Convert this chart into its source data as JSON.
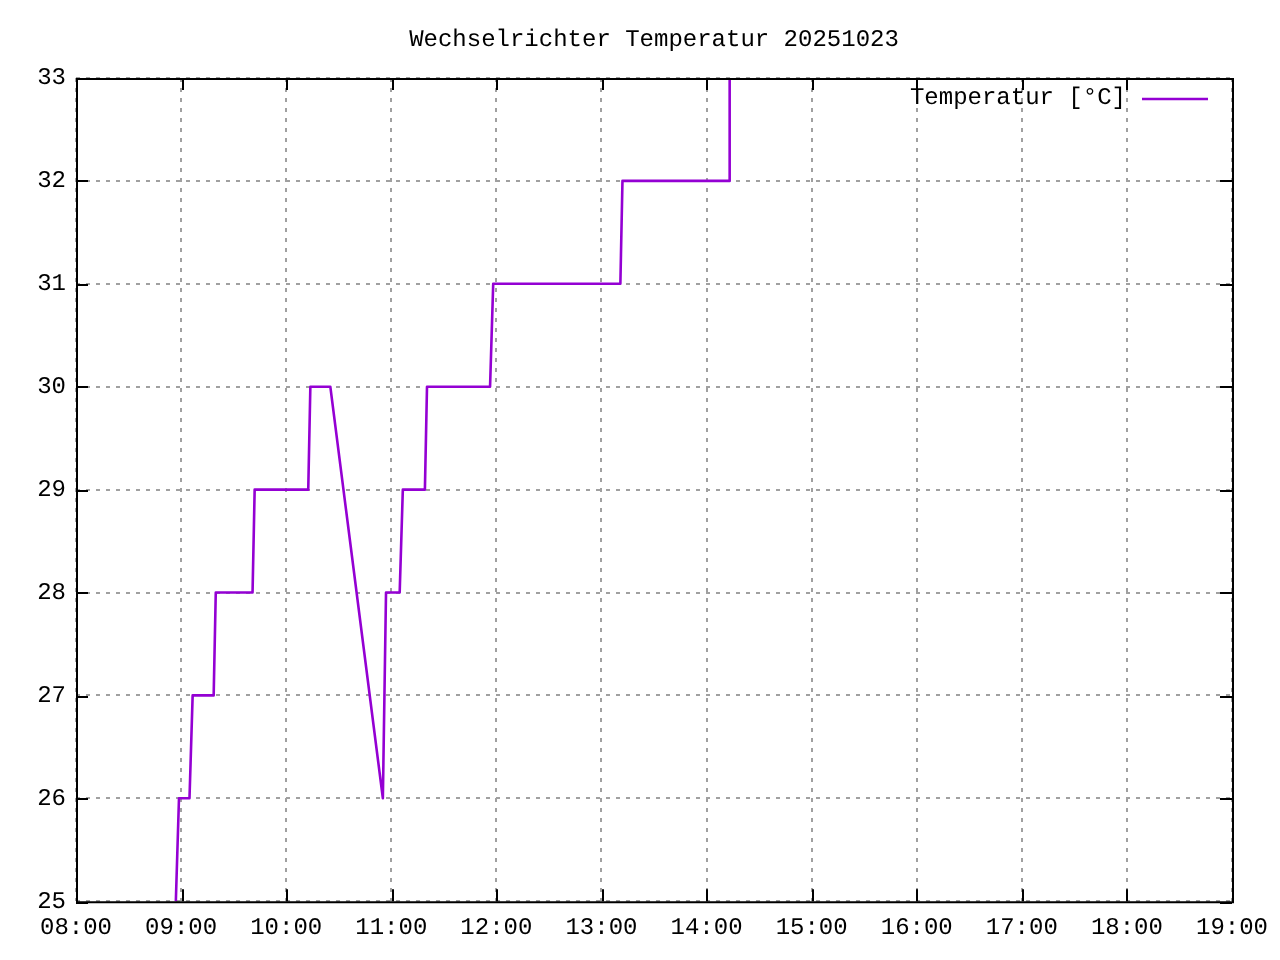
{
  "chart_data": {
    "type": "line",
    "title": "Wechselrichter Temperatur 20251023",
    "x": [
      8.95,
      8.98,
      9.08,
      9.11,
      9.31,
      9.33,
      9.68,
      9.7,
      10.21,
      10.23,
      10.42,
      10.92,
      10.95,
      11.08,
      11.11,
      11.32,
      11.34,
      11.94,
      11.97,
      13.18,
      13.2,
      14.21,
      14.22
    ],
    "series": [
      {
        "name": "Temperatur [°C]",
        "color": "#9400d3",
        "values": [
          25,
          26,
          26,
          27,
          27,
          28,
          28,
          29,
          29,
          30,
          30,
          26,
          28,
          28,
          29,
          29,
          30,
          30,
          31,
          31,
          32,
          32,
          33
        ]
      }
    ],
    "xlim": [
      8,
      19
    ],
    "xticks": [
      {
        "value": 8,
        "label": "08:00"
      },
      {
        "value": 9,
        "label": "09:00"
      },
      {
        "value": 10,
        "label": "10:00"
      },
      {
        "value": 11,
        "label": "11:00"
      },
      {
        "value": 12,
        "label": "12:00"
      },
      {
        "value": 13,
        "label": "13:00"
      },
      {
        "value": 14,
        "label": "14:00"
      },
      {
        "value": 15,
        "label": "15:00"
      },
      {
        "value": 16,
        "label": "16:00"
      },
      {
        "value": 17,
        "label": "17:00"
      },
      {
        "value": 18,
        "label": "18:00"
      },
      {
        "value": 19,
        "label": "19:00"
      }
    ],
    "ylim": [
      25,
      33
    ],
    "yticks": [
      25,
      26,
      27,
      28,
      29,
      30,
      31,
      32,
      33
    ],
    "grid": true,
    "legend": "top right",
    "marker": "none",
    "line_style": "solid"
  }
}
